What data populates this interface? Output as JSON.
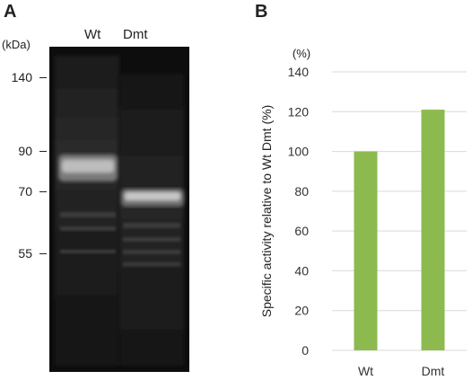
{
  "panel_a": {
    "letter": "A",
    "unit_label": "(kDa)",
    "lanes": [
      "Wt",
      "Dmt"
    ],
    "markers": [
      "140",
      "90",
      "70",
      "55"
    ]
  },
  "panel_b": {
    "letter": "B",
    "unit_label": "(%)"
  },
  "colors": {
    "bar": "#8dba4f",
    "grid": "#d9d9d9",
    "gel_bg": "#0d0d0d"
  },
  "chart_data": {
    "type": "bar",
    "categories": [
      "Wt",
      "Dmt"
    ],
    "values": [
      100,
      121
    ],
    "ylabel": "Specific activity relative to Wt Dmt (%)",
    "ylim": [
      0,
      140
    ],
    "yticks": [
      0,
      20,
      40,
      60,
      80,
      100,
      120,
      140
    ],
    "grid": true
  }
}
